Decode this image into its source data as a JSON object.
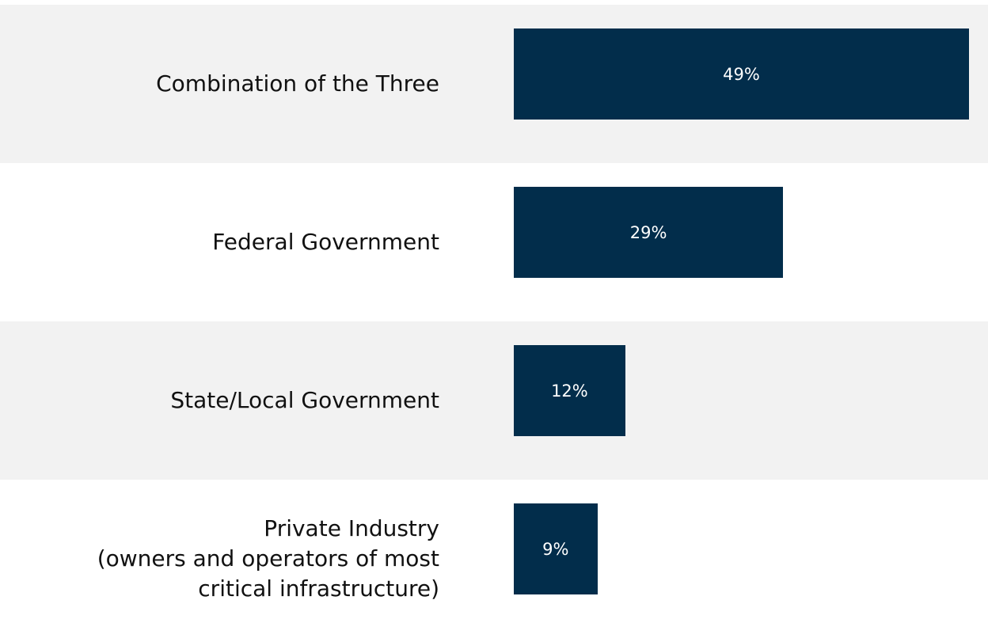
{
  "chart_data": {
    "type": "bar",
    "orientation": "horizontal",
    "categories": [
      "Combination of the Three",
      "Federal Government",
      "State/Local Government",
      "Private Industry\n(owners and operators of most\ncritical infrastructure)"
    ],
    "values": [
      49,
      29,
      12,
      9
    ],
    "value_labels": [
      "49%",
      "29%",
      "12%",
      "9%"
    ],
    "color": "#022d4b"
  }
}
